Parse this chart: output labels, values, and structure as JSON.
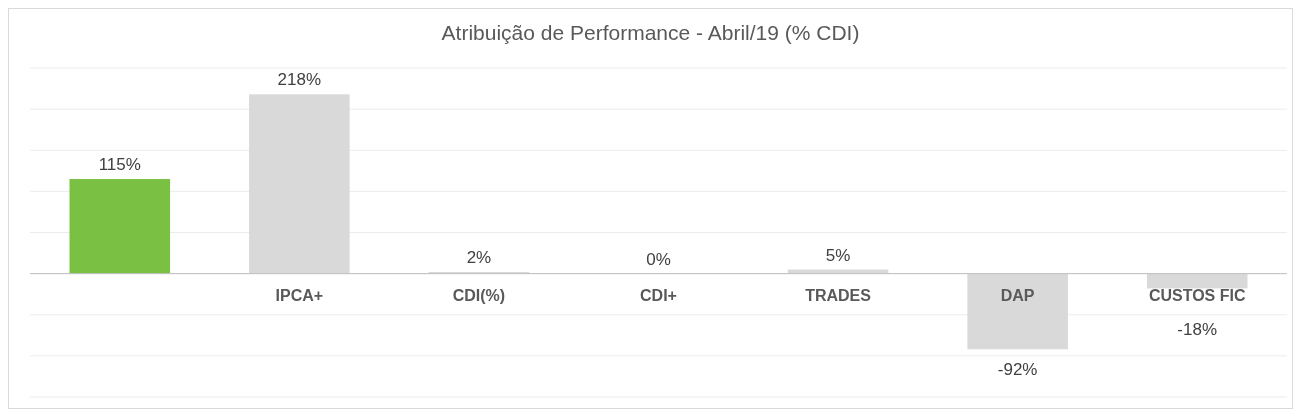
{
  "chart_data": {
    "type": "bar",
    "title": "Atribuição de Performance - Abril/19 (% CDI)",
    "categories": [
      null,
      "IPCA+",
      "CDI(%)",
      "CDI+",
      "TRADES",
      "DAP",
      "CUSTOS FIC"
    ],
    "values": [
      115,
      218,
      2,
      0,
      5,
      -92,
      -18
    ],
    "colors": [
      "#7ac143",
      "#d9d9d9",
      "#d9d9d9",
      "#d9d9d9",
      "#d9d9d9",
      "#d9d9d9",
      "#d9d9d9"
    ],
    "value_labels": [
      "115%",
      "218%",
      "2%",
      "0%",
      "5%",
      "-92%",
      "-18%"
    ],
    "ylim": [
      -150,
      250
    ],
    "yticks": [
      {
        "value": -150,
        "label": null
      },
      {
        "value": -100,
        "label": null
      },
      {
        "value": -50,
        "label": null
      },
      {
        "value": 0,
        "label": null
      },
      {
        "value": 50,
        "label": null
      },
      {
        "value": 100,
        "label": null
      },
      {
        "value": 150,
        "label": null
      },
      {
        "value": 200,
        "label": null
      },
      {
        "value": 250,
        "label": null
      }
    ],
    "tick_labels": "x",
    "grid": "y"
  }
}
